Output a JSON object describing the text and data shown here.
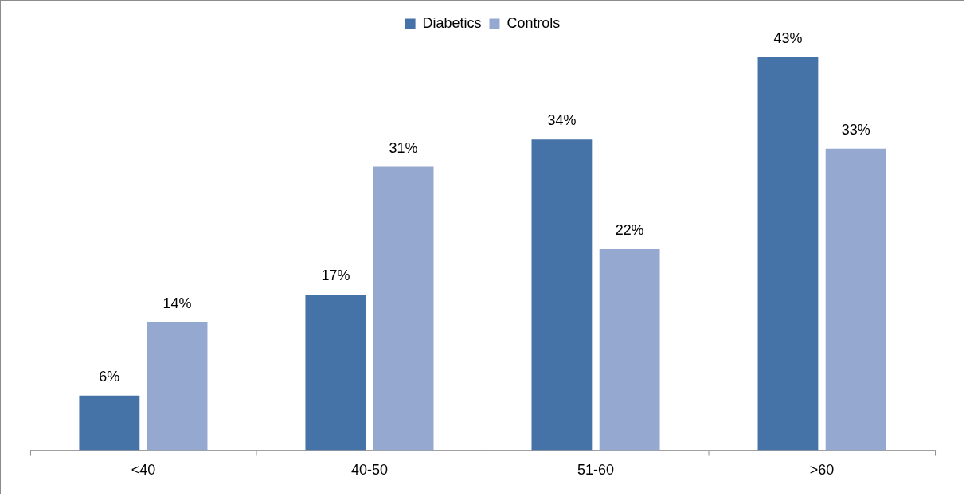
{
  "chart_data": {
    "type": "bar",
    "categories": [
      "<40",
      "40-50",
      "51-60",
      ">60"
    ],
    "series": [
      {
        "name": "Diabetics",
        "color": "#4572a7",
        "values": [
          6,
          17,
          34,
          43
        ],
        "value_labels": [
          "6%",
          "17%",
          "34%",
          "43%"
        ]
      },
      {
        "name": "Controls",
        "color": "#95a9d0",
        "values": [
          14,
          31,
          22,
          33
        ],
        "value_labels": [
          "14%",
          "31%",
          "22%",
          "33%"
        ]
      }
    ],
    "legend": "top",
    "grid": false
  }
}
